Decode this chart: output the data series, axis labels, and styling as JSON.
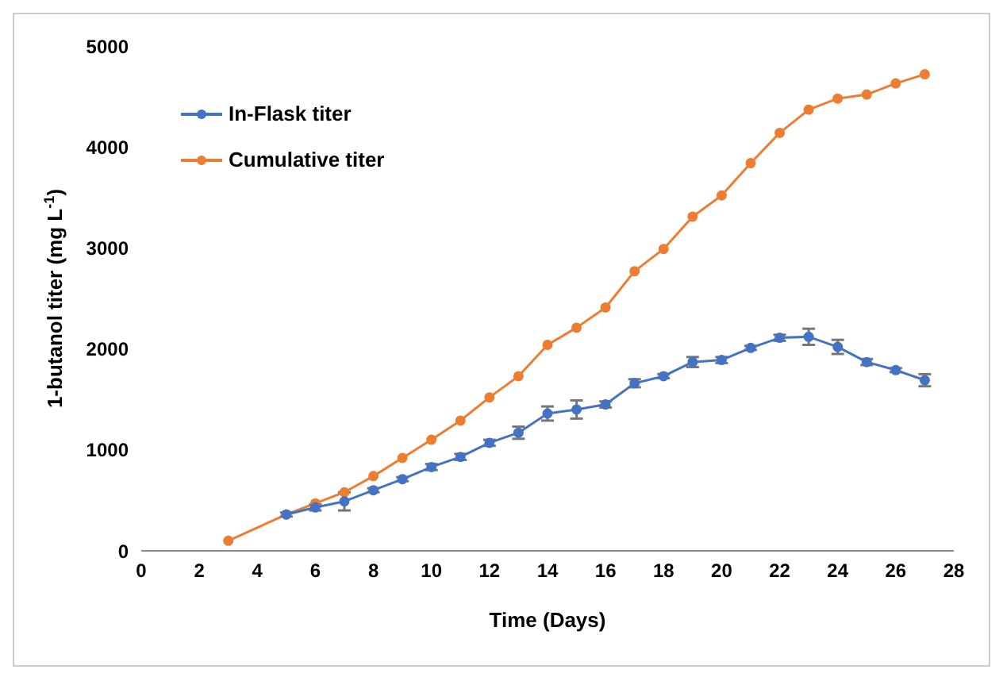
{
  "chart_data": {
    "type": "line",
    "xlabel": "Time (Days)",
    "ylabel": "1-butanol titer (mg L$^{-1}$)",
    "xlim": [
      0,
      28
    ],
    "xticks": [
      0,
      2,
      4,
      6,
      8,
      10,
      12,
      14,
      16,
      18,
      20,
      22,
      24,
      26,
      28
    ],
    "ylim": [
      0,
      5000
    ],
    "yticks": [
      0,
      1000,
      2000,
      3000,
      4000,
      5000
    ],
    "grid": false,
    "legend": "top left",
    "marker": "circle",
    "line_style": "solid",
    "series": [
      {
        "name": "In-Flask titer",
        "color": "#4472c4",
        "x": [
          5,
          6,
          7,
          8,
          9,
          10,
          11,
          12,
          13,
          14,
          15,
          16,
          17,
          18,
          19,
          20,
          21,
          22,
          23,
          24,
          25,
          26,
          27
        ],
        "values": [
          360,
          430,
          490,
          600,
          710,
          830,
          930,
          1070,
          1170,
          1360,
          1400,
          1450,
          1660,
          1730,
          1870,
          1890,
          2010,
          2110,
          2120,
          2020,
          1870,
          1790,
          1690
        ],
        "errors": [
          20,
          30,
          90,
          20,
          20,
          30,
          30,
          30,
          60,
          70,
          90,
          30,
          40,
          20,
          50,
          30,
          20,
          30,
          80,
          70,
          30,
          20,
          60
        ]
      },
      {
        "name": "Cumulative titer",
        "color": "#ed7d31",
        "x": [
          3,
          5,
          6,
          7,
          8,
          9,
          10,
          11,
          12,
          13,
          14,
          15,
          16,
          17,
          18,
          19,
          20,
          21,
          22,
          23,
          24,
          25,
          26,
          27
        ],
        "values": [
          100,
          360,
          470,
          580,
          740,
          920,
          1100,
          1290,
          1520,
          1730,
          2040,
          2210,
          2410,
          2770,
          2990,
          3310,
          3520,
          3840,
          4140,
          4370,
          4480,
          4520,
          4630,
          4720
        ]
      }
    ]
  }
}
